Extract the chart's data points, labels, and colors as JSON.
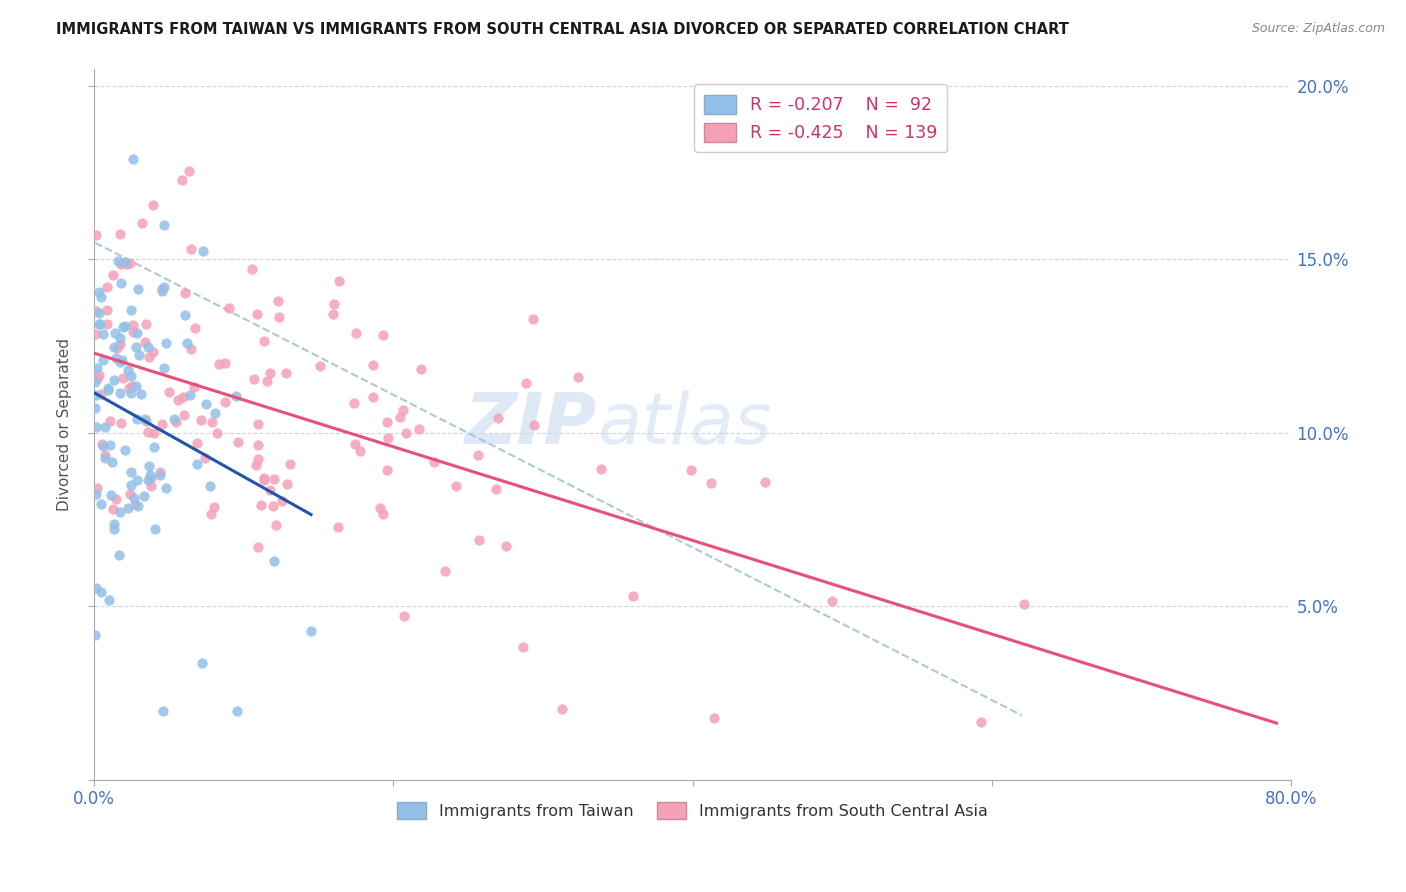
{
  "title": "IMMIGRANTS FROM TAIWAN VS IMMIGRANTS FROM SOUTH CENTRAL ASIA DIVORCED OR SEPARATED CORRELATION CHART",
  "source": "Source: ZipAtlas.com",
  "ylabel": "Divorced or Separated",
  "xlim": [
    0.0,
    0.8
  ],
  "ylim": [
    0.0,
    0.205
  ],
  "taiwan_R": -0.207,
  "taiwan_N": 92,
  "sca_R": -0.425,
  "sca_N": 139,
  "taiwan_color": "#92c0e8",
  "sca_color": "#f4a0b8",
  "taiwan_line_color": "#2255aa",
  "sca_line_color": "#e8507a",
  "dashed_line_color": "#aac8e0",
  "taiwan_seed": 1234,
  "sca_seed": 5678
}
